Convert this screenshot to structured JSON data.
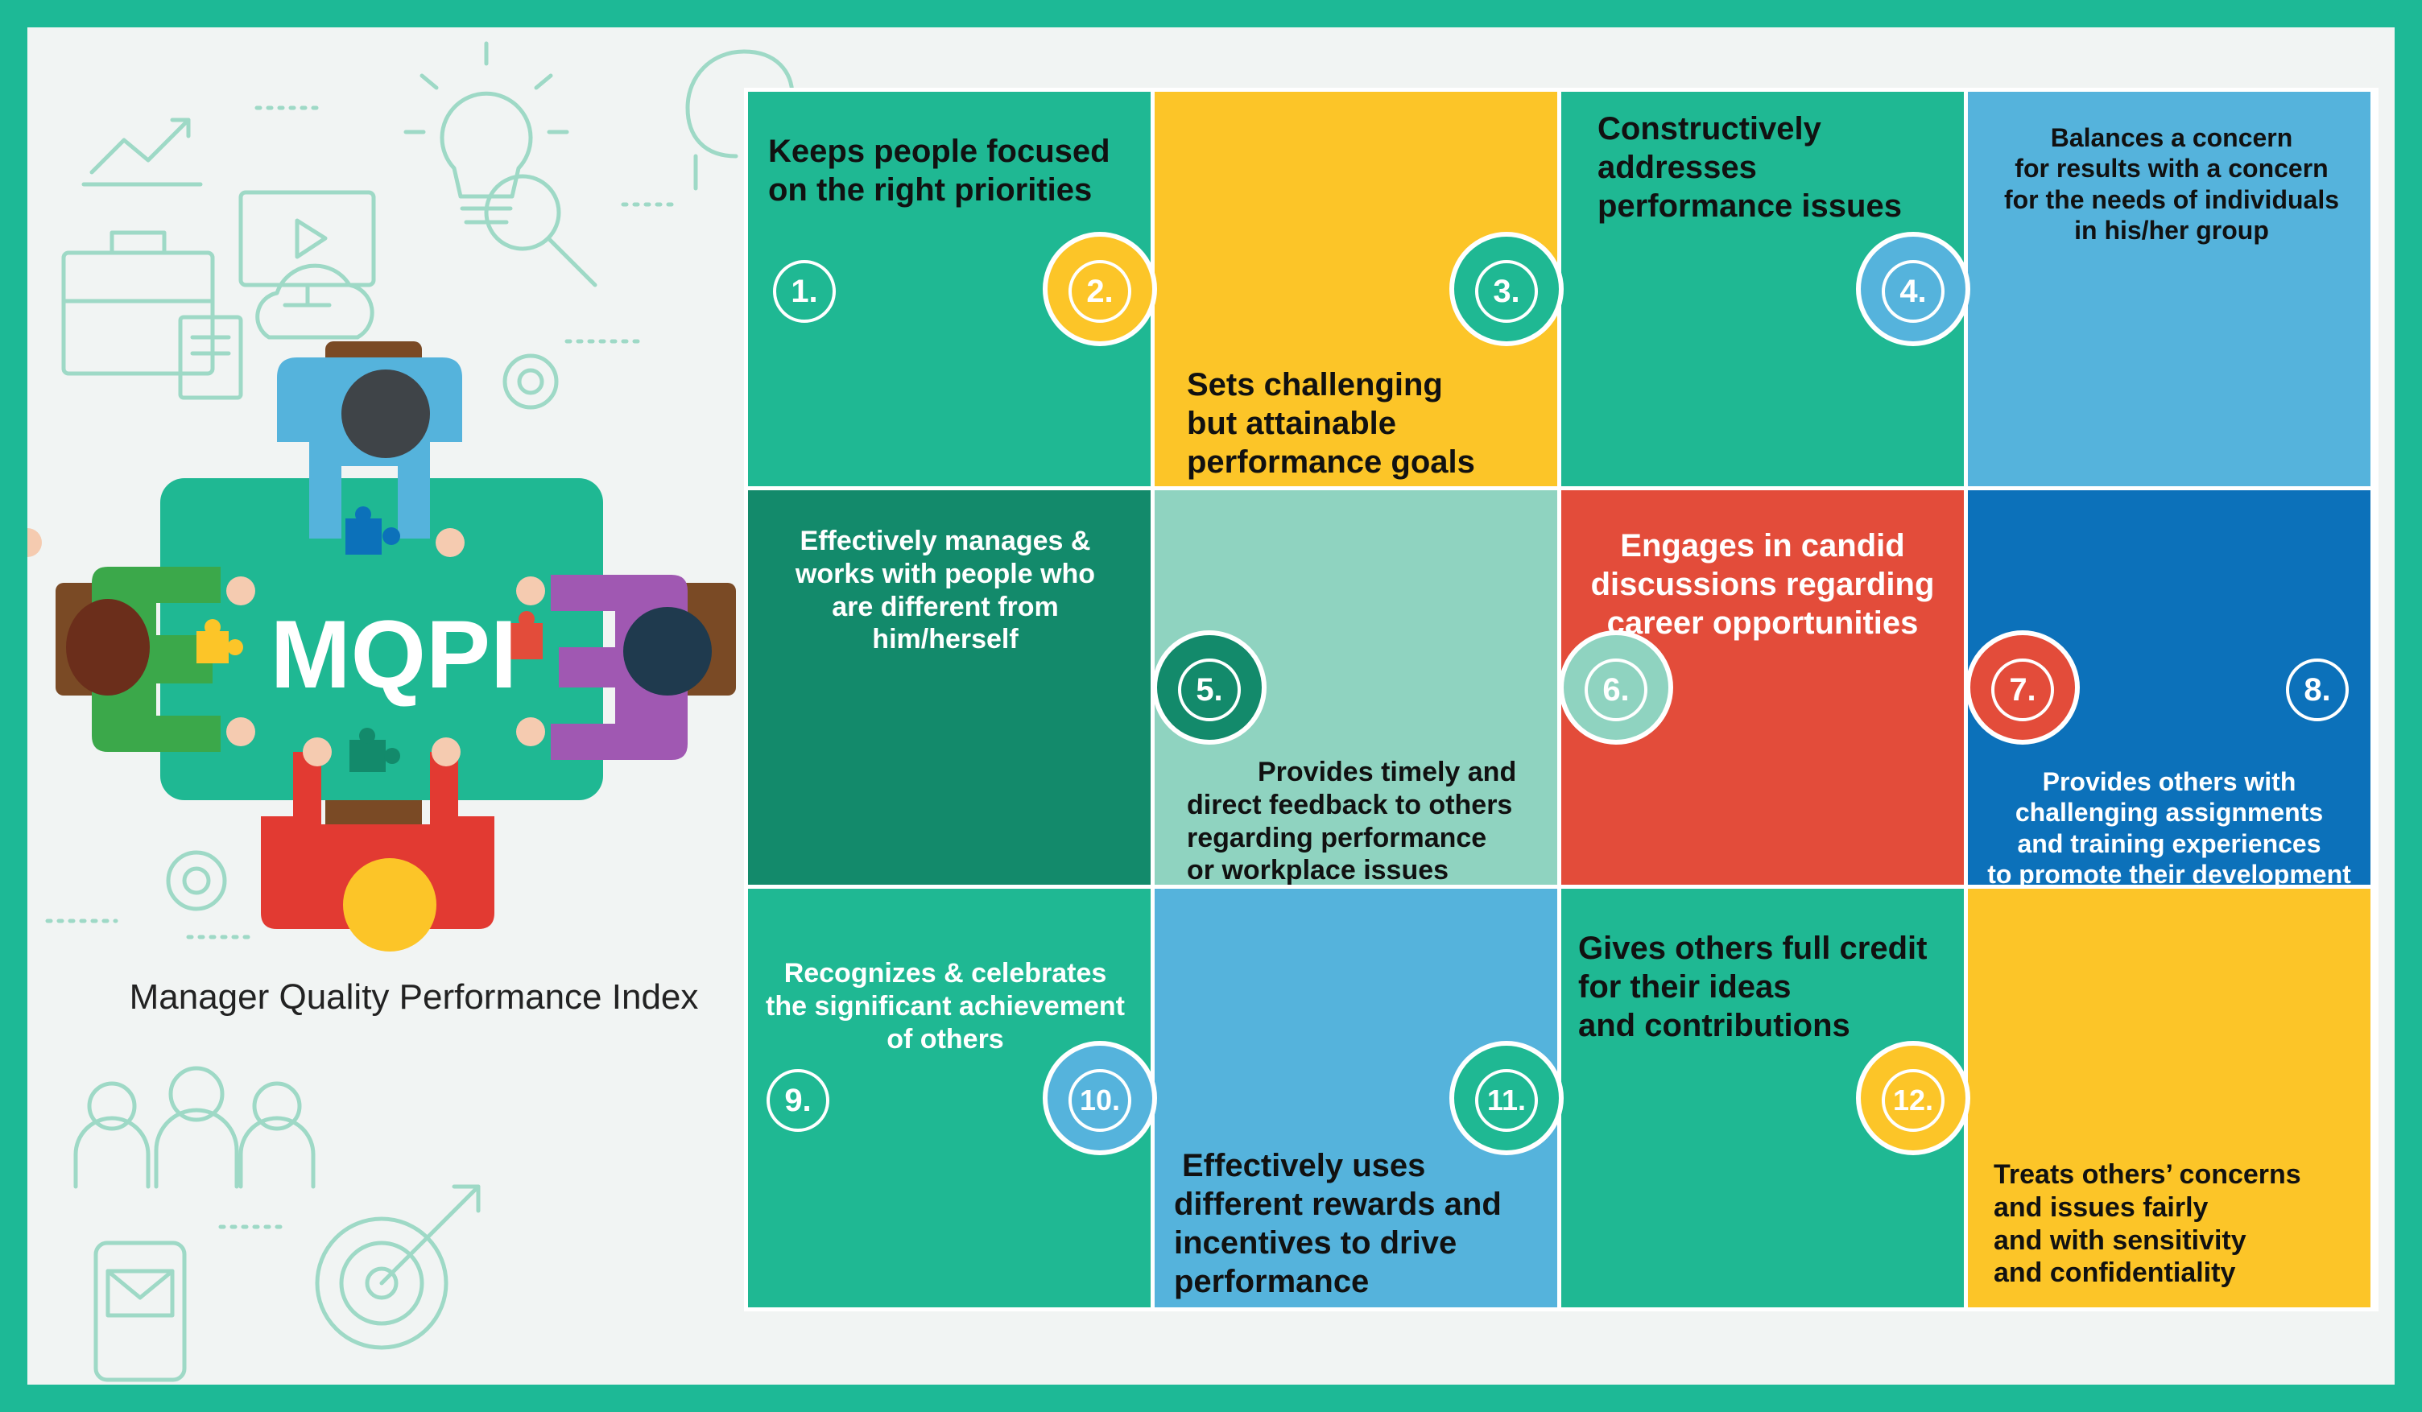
{
  "logo_text": "MQPI",
  "subtitle": "Manager Quality Performance Index",
  "colors": {
    "border_green": "#1db996",
    "teal": "#1fb893",
    "dark_teal": "#138a6b",
    "mint": "#8fd3c0",
    "yellow": "#fcc528",
    "sky_blue": "#55b3dc",
    "royal_blue": "#0c71ba",
    "red": "#e34c3a"
  },
  "pieces": [
    {
      "number": "1.",
      "lines": [
        "Keeps people focused",
        "on the right priorities"
      ]
    },
    {
      "number": "2.",
      "lines": [
        "Sets challenging",
        "but attainable",
        "performance goals"
      ]
    },
    {
      "number": "3.",
      "lines": [
        "Constructively",
        "addresses",
        "performance issues"
      ]
    },
    {
      "number": "4.",
      "lines": [
        "Balances a concern",
        "for results with a concern",
        "for the needs of individuals",
        "in his/her group"
      ]
    },
    {
      "number": "5.",
      "lines": [
        "Effectively manages &",
        "works with people who",
        "are different from",
        "him/herself"
      ]
    },
    {
      "number": "6.",
      "lines": [
        "Provides timely and",
        "direct feedback to others",
        "regarding performance",
        "or workplace issues"
      ]
    },
    {
      "number": "7.",
      "lines": [
        "Engages in candid",
        "discussions regarding",
        "career opportunities"
      ]
    },
    {
      "number": "8.",
      "lines": [
        "Provides others with",
        "challenging assignments",
        "and training experiences",
        "to promote their development"
      ]
    },
    {
      "number": "9.",
      "lines": [
        "Recognizes & celebrates",
        "the significant achievement",
        "of others"
      ]
    },
    {
      "number": "10.",
      "lines": [
        "Effectively uses",
        "different rewards and",
        "incentives to drive",
        "performance"
      ]
    },
    {
      "number": "11.",
      "lines": [
        "Gives others full credit",
        "for their ideas",
        "and contributions"
      ]
    },
    {
      "number": "12.",
      "lines": [
        "Treats others’ concerns",
        "and issues fairly",
        "and with sensitivity",
        "and confidentiality"
      ]
    }
  ]
}
